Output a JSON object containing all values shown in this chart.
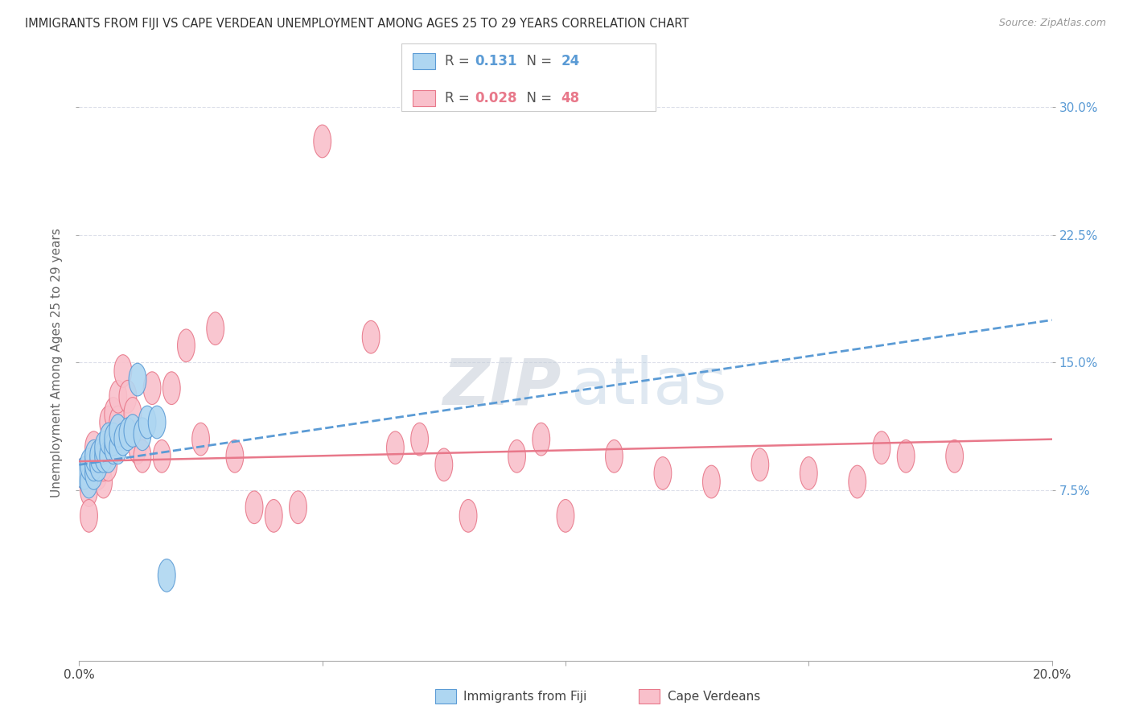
{
  "title": "IMMIGRANTS FROM FIJI VS CAPE VERDEAN UNEMPLOYMENT AMONG AGES 25 TO 29 YEARS CORRELATION CHART",
  "source": "Source: ZipAtlas.com",
  "ylabel": "Unemployment Among Ages 25 to 29 years",
  "x_min": 0.0,
  "x_max": 0.2,
  "y_min": -0.025,
  "y_max": 0.325,
  "x_ticks": [
    0.0,
    0.05,
    0.1,
    0.15,
    0.2
  ],
  "x_tick_labels": [
    "0.0%",
    "",
    "",
    "",
    "20.0%"
  ],
  "y_ticks": [
    0.075,
    0.15,
    0.225,
    0.3
  ],
  "y_tick_labels": [
    "7.5%",
    "15.0%",
    "22.5%",
    "30.0%"
  ],
  "fiji_color": "#aed6f1",
  "fiji_edge_color": "#5b9bd5",
  "cape_color": "#f9c0cb",
  "cape_edge_color": "#e8788a",
  "fiji_R": 0.131,
  "fiji_N": 24,
  "cape_R": 0.028,
  "cape_N": 48,
  "legend_fiji_label": "Immigrants from Fiji",
  "legend_cape_label": "Cape Verdeans",
  "fiji_x": [
    0.001,
    0.002,
    0.002,
    0.003,
    0.003,
    0.003,
    0.004,
    0.004,
    0.005,
    0.005,
    0.006,
    0.006,
    0.007,
    0.007,
    0.008,
    0.008,
    0.009,
    0.01,
    0.011,
    0.012,
    0.013,
    0.014,
    0.016,
    0.018
  ],
  "fiji_y": [
    0.085,
    0.08,
    0.09,
    0.085,
    0.09,
    0.095,
    0.09,
    0.095,
    0.095,
    0.1,
    0.095,
    0.105,
    0.1,
    0.105,
    0.1,
    0.11,
    0.105,
    0.108,
    0.11,
    0.14,
    0.108,
    0.115,
    0.115,
    0.025
  ],
  "cape_x": [
    0.001,
    0.002,
    0.002,
    0.003,
    0.003,
    0.004,
    0.004,
    0.005,
    0.005,
    0.006,
    0.006,
    0.007,
    0.007,
    0.008,
    0.008,
    0.009,
    0.01,
    0.011,
    0.012,
    0.013,
    0.015,
    0.017,
    0.019,
    0.022,
    0.025,
    0.028,
    0.032,
    0.036,
    0.04,
    0.045,
    0.05,
    0.06,
    0.065,
    0.07,
    0.075,
    0.08,
    0.09,
    0.095,
    0.1,
    0.11,
    0.12,
    0.13,
    0.14,
    0.15,
    0.16,
    0.165,
    0.17,
    0.18
  ],
  "cape_y": [
    0.085,
    0.075,
    0.06,
    0.09,
    0.1,
    0.085,
    0.095,
    0.08,
    0.09,
    0.09,
    0.115,
    0.105,
    0.12,
    0.115,
    0.13,
    0.145,
    0.13,
    0.12,
    0.1,
    0.095,
    0.135,
    0.095,
    0.135,
    0.16,
    0.105,
    0.17,
    0.095,
    0.065,
    0.06,
    0.065,
    0.28,
    0.165,
    0.1,
    0.105,
    0.09,
    0.06,
    0.095,
    0.105,
    0.06,
    0.095,
    0.085,
    0.08,
    0.09,
    0.085,
    0.08,
    0.1,
    0.095,
    0.095
  ],
  "background_color": "#ffffff",
  "grid_color": "#dde0ea",
  "right_axis_color": "#5b9bd5",
  "trendline_fiji_color": "#5b9bd5",
  "trendline_cape_color": "#e8788a"
}
